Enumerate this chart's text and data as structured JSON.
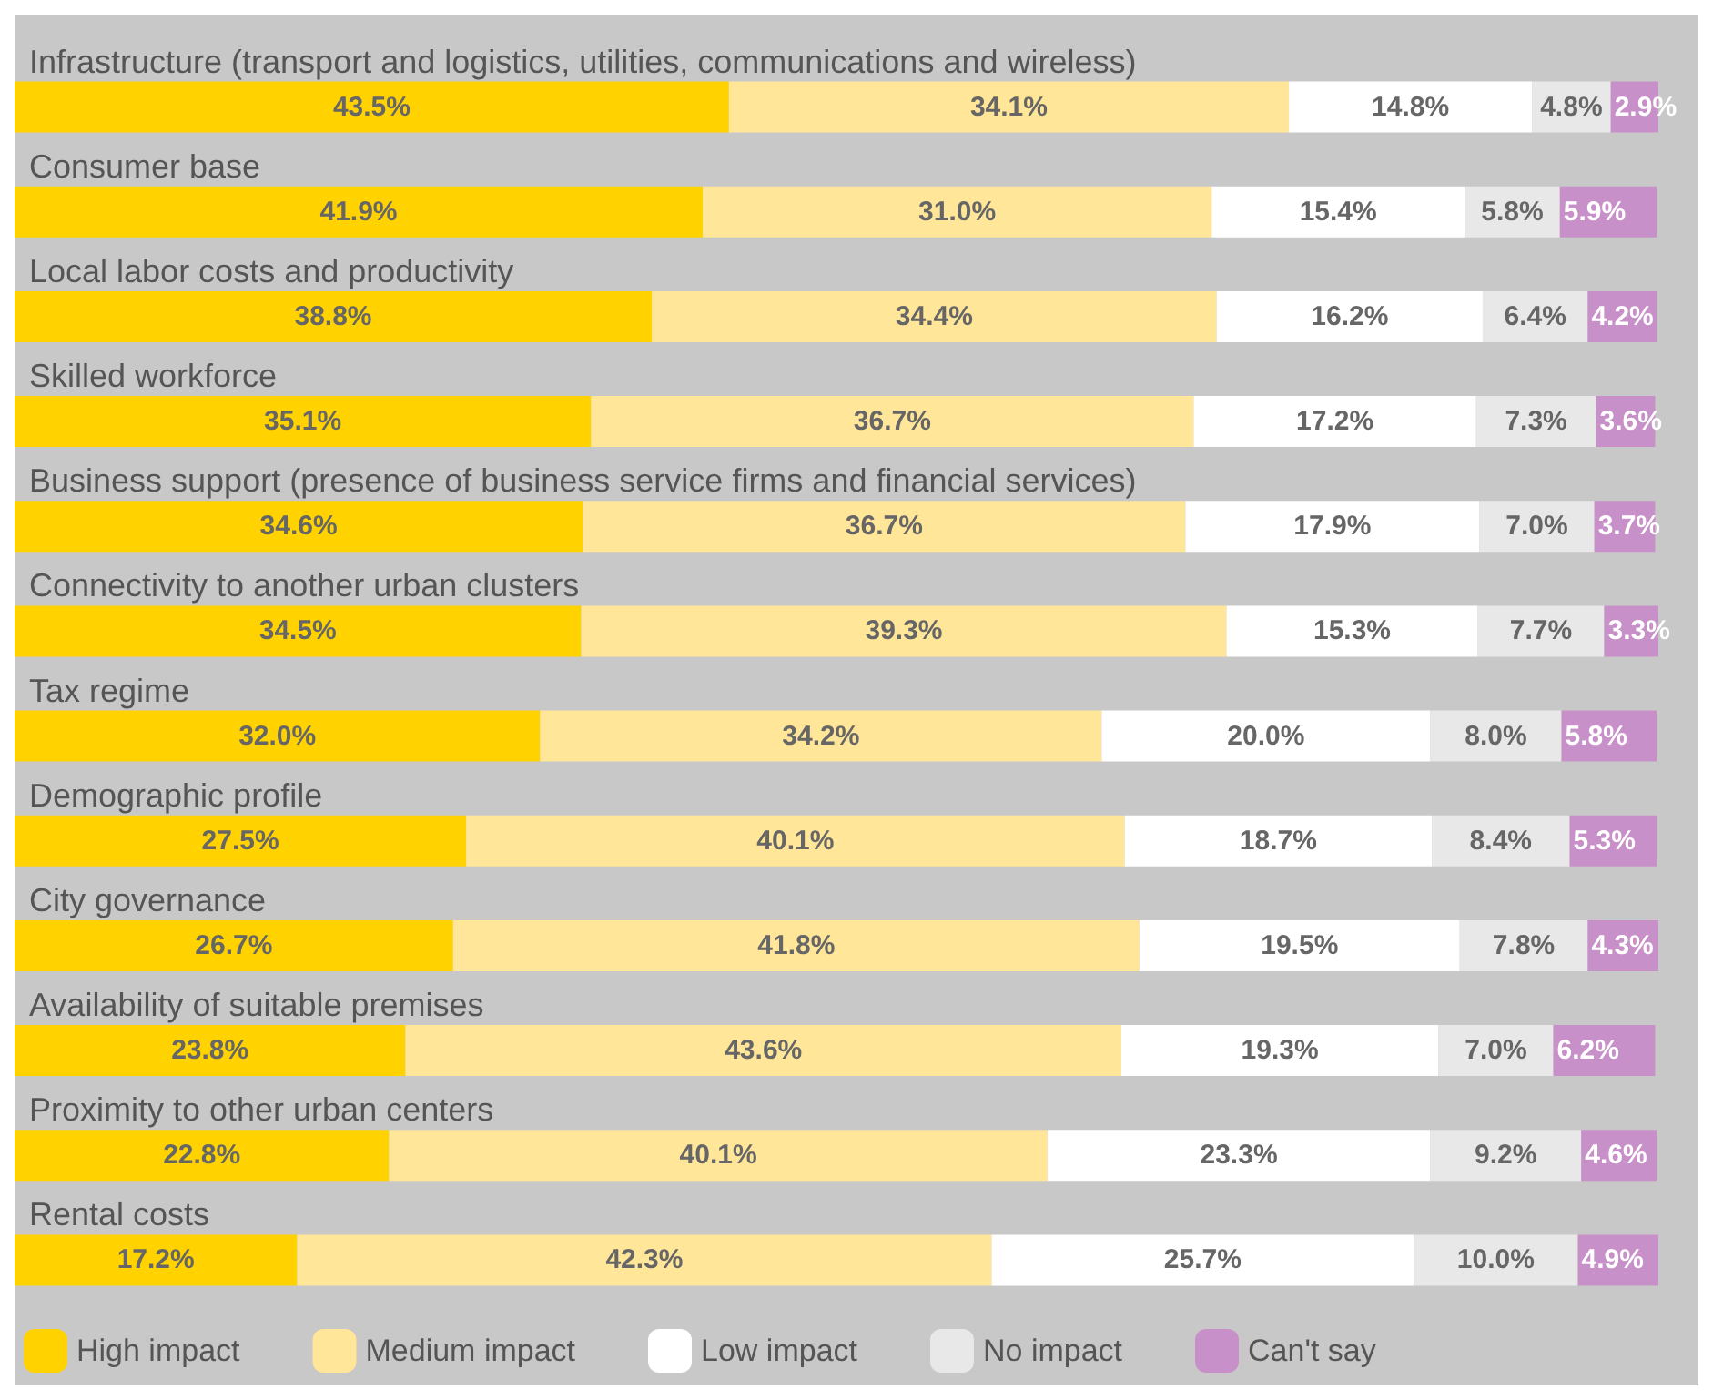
{
  "chart_data": {
    "type": "bar",
    "orientation": "horizontal",
    "stacked": true,
    "legend": "bottom",
    "categories": [
      "Infrastructure (transport and logistics, utilities, communications and wireless)",
      "Consumer base",
      "Local labor costs and productivity",
      "Skilled workforce",
      "Business support (presence of business service firms and financial services)",
      "Connectivity to another urban clusters",
      "Tax regime",
      "Demographic profile",
      "City governance",
      "Availability of suitable premises",
      "Proximity to other urban centers",
      "Rental costs"
    ],
    "series": [
      {
        "name": "High impact",
        "color": "#ffd200",
        "values": [
          43.5,
          41.9,
          38.8,
          35.1,
          34.6,
          34.5,
          32.0,
          27.5,
          26.7,
          23.8,
          22.8,
          17.2
        ],
        "value_labels": [
          "43.5%",
          "41.9%",
          "38.8%",
          "35.1%",
          "34.6%",
          "34.5%",
          "32.0%",
          "27.5%",
          "26.7%",
          "23.8%",
          "22.8%",
          "17.2%"
        ]
      },
      {
        "name": "Medium impact",
        "color": "#ffe699",
        "values": [
          34.1,
          31.0,
          34.4,
          36.7,
          36.7,
          39.3,
          34.2,
          40.1,
          41.8,
          43.6,
          40.1,
          42.3
        ],
        "value_labels": [
          "34.1%",
          "31.0%",
          "34.4%",
          "36.7%",
          "36.7%",
          "39.3%",
          "34.2%",
          "40.1%",
          "41.8%",
          "43.6%",
          "40.1%",
          "42.3%"
        ]
      },
      {
        "name": "Low impact",
        "color": "#ffffff",
        "values": [
          14.8,
          15.4,
          16.2,
          17.2,
          17.9,
          15.3,
          20.0,
          18.7,
          19.5,
          19.3,
          23.3,
          25.7
        ],
        "value_labels": [
          "14.8%",
          "15.4%",
          "16.2%",
          "17.2%",
          "17.9%",
          "15.3%",
          "20.0%",
          "18.7%",
          "19.5%",
          "19.3%",
          "23.3%",
          "25.7%"
        ]
      },
      {
        "name": "No impact",
        "color": "#e8e8e8",
        "values": [
          4.8,
          5.8,
          6.4,
          7.3,
          7.0,
          7.7,
          8.0,
          8.4,
          7.8,
          7.0,
          9.2,
          10.0
        ],
        "value_labels": [
          "4.8%",
          "5.8%",
          "6.4%",
          "7.3%",
          "7.0%",
          "7.7%",
          "8.0%",
          "8.4%",
          "7.8%",
          "7.0%",
          "9.2%",
          "10.0%"
        ]
      },
      {
        "name": "Can't say",
        "color": "#c890c8",
        "values": [
          2.9,
          5.9,
          4.2,
          3.6,
          3.7,
          3.3,
          5.8,
          5.3,
          4.3,
          6.2,
          4.6,
          4.9
        ],
        "value_labels": [
          "2.9%",
          "5.9%",
          "4.2%",
          "3.6%",
          "3.7%",
          "3.3%",
          "5.8%",
          "5.3%",
          "4.3%",
          "6.2%",
          "4.6%",
          "4.9%"
        ]
      }
    ]
  }
}
